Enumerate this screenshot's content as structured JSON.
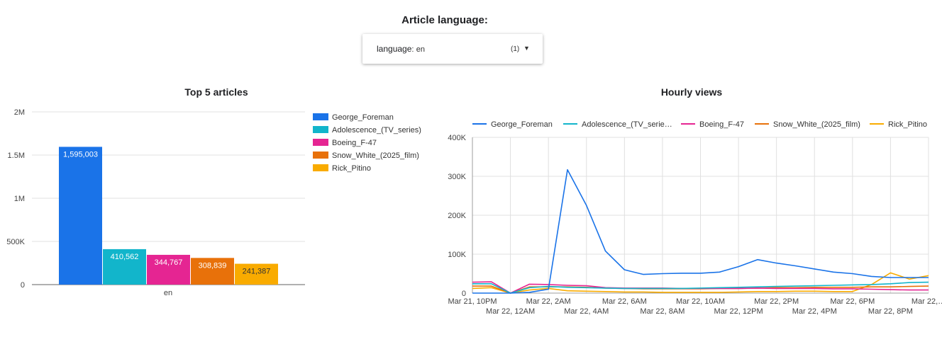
{
  "filter": {
    "heading": "Article language:",
    "field_label": "language",
    "separator": ":",
    "value": "en",
    "count": "(1)"
  },
  "colors": {
    "series": [
      "#1a73e8",
      "#12b5cb",
      "#e52592",
      "#e8710a",
      "#f9ab00"
    ],
    "grid": "#e0e0e0",
    "axis": "#9e9e9e"
  },
  "chart_data": [
    {
      "type": "bar",
      "title": "Top 5 articles",
      "categories": [
        "en"
      ],
      "series": [
        {
          "name": "George_Foreman",
          "values": [
            1595003
          ],
          "label": "1,595,003"
        },
        {
          "name": "Adolescence_(TV_series)",
          "values": [
            410562
          ],
          "label": "410,562"
        },
        {
          "name": "Boeing_F-47",
          "values": [
            344767
          ],
          "label": "344,767"
        },
        {
          "name": "Snow_White_(2025_film)",
          "values": [
            308839
          ],
          "label": "308,839"
        },
        {
          "name": "Rick_Pitino",
          "values": [
            241387
          ],
          "label": "241,387"
        }
      ],
      "ylim": [
        0,
        2000000
      ],
      "yticks": [
        {
          "value": 0,
          "label": "0"
        },
        {
          "value": 500000,
          "label": "500K"
        },
        {
          "value": 1000000,
          "label": "1M"
        },
        {
          "value": 1500000,
          "label": "1.5M"
        },
        {
          "value": 2000000,
          "label": "2M"
        }
      ],
      "legend_position": "right",
      "grid": true
    },
    {
      "type": "line",
      "title": "Hourly views",
      "x_hours": [
        0,
        1,
        2,
        3,
        4,
        5,
        6,
        7,
        8,
        9,
        10,
        11,
        12,
        13,
        14,
        15,
        16,
        17,
        18,
        19,
        20,
        21,
        22,
        23,
        24
      ],
      "x_tick_labels": [
        "Mar 21, 10PM",
        "Mar 22, 12AM",
        "Mar 22, 2AM",
        "Mar 22, 4AM",
        "Mar 22, 6AM",
        "Mar 22, 8AM",
        "Mar 22, 10AM",
        "Mar 22, 12PM",
        "Mar 22, 2PM",
        "Mar 22, 4PM",
        "Mar 22, 6PM",
        "Mar 22, 8PM",
        "Mar 22,…"
      ],
      "series": [
        {
          "name": "George_Foreman",
          "legend_label": "George_Foreman",
          "values": [
            0,
            0,
            0,
            2000,
            10000,
            317000,
            225000,
            108000,
            60000,
            48000,
            50000,
            51000,
            51000,
            54000,
            68000,
            86000,
            77000,
            70000,
            62000,
            54000,
            50000,
            43000,
            40000,
            40000,
            40000
          ]
        },
        {
          "name": "Adolescence_(TV_series)",
          "legend_label": "Adolescence_(TV_serie…",
          "values": [
            24000,
            24000,
            0,
            14000,
            17000,
            15000,
            14000,
            13000,
            12000,
            12000,
            12000,
            12000,
            13000,
            14000,
            15000,
            16000,
            17000,
            18000,
            19000,
            20000,
            21000,
            22000,
            24000,
            27000,
            28000
          ]
        },
        {
          "name": "Boeing_F-47",
          "legend_label": "Boeing_F-47",
          "values": [
            28000,
            29000,
            0,
            23000,
            22000,
            20000,
            19000,
            14000,
            13000,
            13000,
            13000,
            12000,
            12000,
            12000,
            12000,
            13000,
            12000,
            12000,
            12000,
            11000,
            11000,
            10000,
            9000,
            8000,
            8000
          ]
        },
        {
          "name": "Snow_White_(2025_film)",
          "legend_label": "Snow_White_(2025_film)",
          "values": [
            18000,
            18000,
            0,
            16000,
            16000,
            16000,
            15000,
            13000,
            12000,
            11000,
            11000,
            11000,
            11000,
            12000,
            12000,
            13000,
            14000,
            14000,
            15000,
            15000,
            15000,
            16000,
            16000,
            17000,
            18000
          ]
        },
        {
          "name": "Rick_Pitino",
          "legend_label": "Rick_Pitino",
          "values": [
            12000,
            14000,
            0,
            8000,
            12000,
            6000,
            5000,
            4000,
            3000,
            3000,
            2000,
            2000,
            2000,
            2000,
            3000,
            4000,
            4000,
            5000,
            5000,
            4000,
            4000,
            22000,
            52000,
            36000,
            45000
          ]
        }
      ],
      "ylim": [
        0,
        400000
      ],
      "yticks": [
        {
          "value": 0,
          "label": "0"
        },
        {
          "value": 100000,
          "label": "100K"
        },
        {
          "value": 200000,
          "label": "200K"
        },
        {
          "value": 300000,
          "label": "300K"
        },
        {
          "value": 400000,
          "label": "400K"
        }
      ],
      "legend_position": "top",
      "grid": true
    }
  ]
}
